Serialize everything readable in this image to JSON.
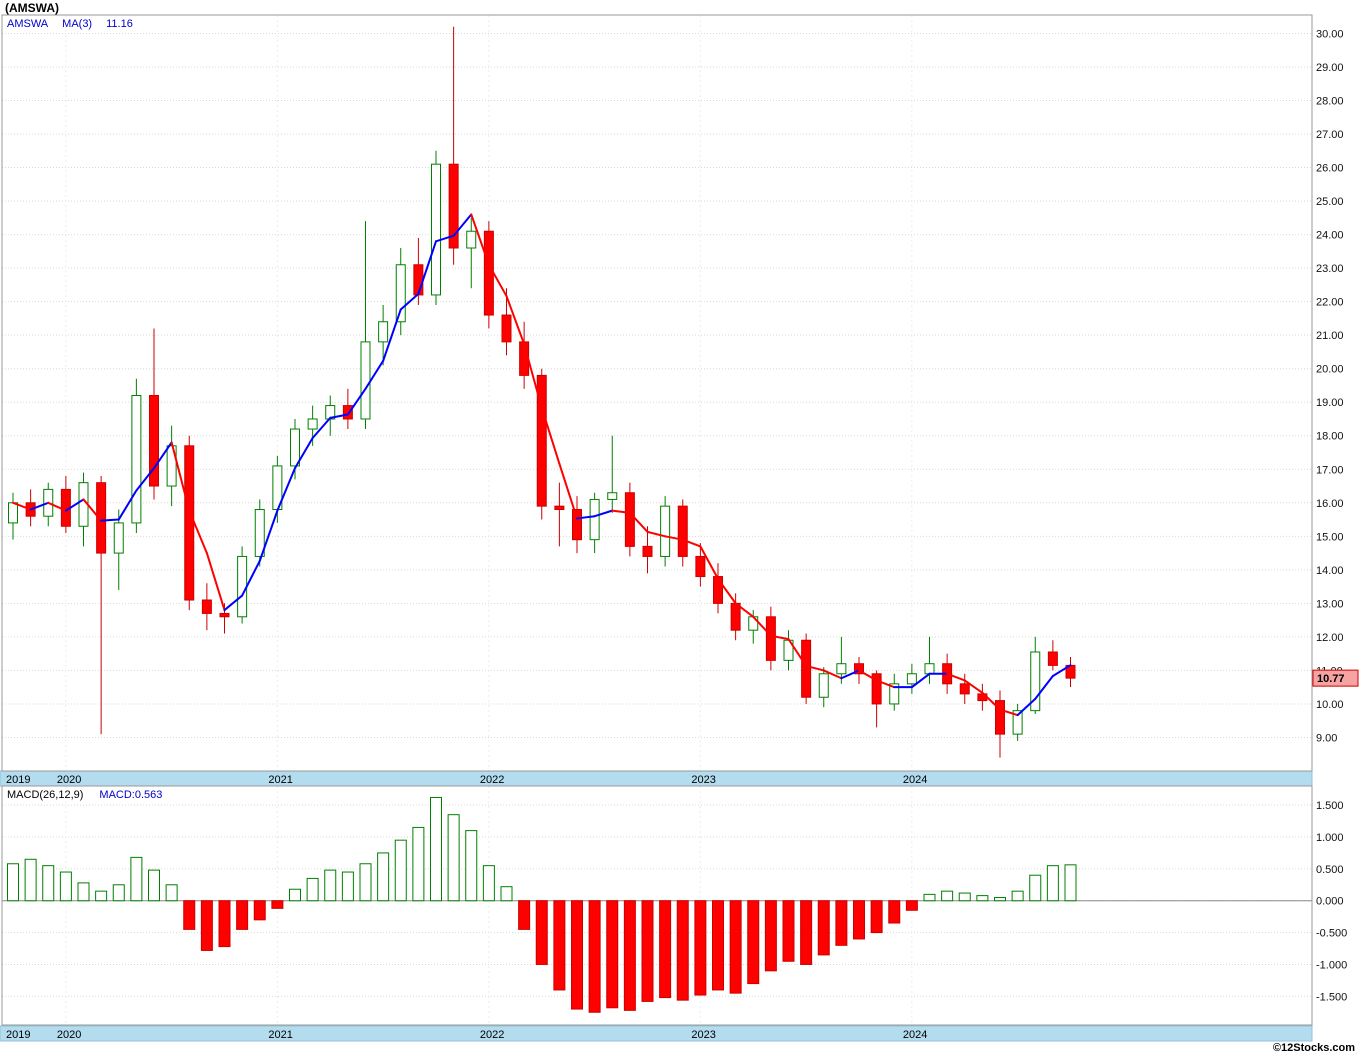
{
  "title": "(AMSWA)",
  "watermark": "©12Stocks.com",
  "price_panel": {
    "legend": {
      "symbol": "AMSWA",
      "ma_label": "MA(3)",
      "ma_value": "11.16"
    },
    "y_axis_labels": [
      "30.00",
      "29.00",
      "28.00",
      "27.00",
      "26.00",
      "25.00",
      "24.00",
      "23.00",
      "22.00",
      "21.00",
      "20.00",
      "19.00",
      "18.00",
      "17.00",
      "16.00",
      "15.00",
      "14.00",
      "13.00",
      "12.00",
      "11.00",
      "10.00",
      "9.00"
    ],
    "last_price_label": "10.77",
    "x_axis_years": [
      "2019",
      "2020",
      "2021",
      "2022",
      "2023",
      "2024"
    ]
  },
  "macd_panel": {
    "legend": {
      "label": "MACD(26,12,9)",
      "value_label": "MACD:0.563"
    },
    "y_axis_labels": [
      "1.500",
      "1.000",
      "0.500",
      "0.000",
      "-0.500",
      "-1.000",
      "-1.500"
    ],
    "x_axis_years": [
      "2019",
      "2020",
      "2021",
      "2022",
      "2023",
      "2024"
    ]
  },
  "colors": {
    "up": "#008000",
    "up_fill": "#ffffff",
    "down": "#ff0000",
    "down_border": "#cc0000",
    "ma_up": "#0000ff",
    "ma_down": "#ff0000",
    "band": "#b3dcee",
    "band_border": "#93c2d8",
    "legend_blue": "#0000cc",
    "grid": "#d9d9d9",
    "axis_text": "#111111",
    "border": "#999999",
    "last_price_bg": "#f7a3a3"
  },
  "chart_data": [
    {
      "type": "candlestick",
      "symbol": "AMSWA",
      "interval": "monthly",
      "ylim": [
        9,
        30
      ],
      "axis_side": "right",
      "grid": true,
      "x": [
        "2019-10",
        "2019-11",
        "2019-12",
        "2020-01",
        "2020-02",
        "2020-03",
        "2020-04",
        "2020-05",
        "2020-06",
        "2020-07",
        "2020-08",
        "2020-09",
        "2020-10",
        "2020-11",
        "2020-12",
        "2021-01",
        "2021-02",
        "2021-03",
        "2021-04",
        "2021-05",
        "2021-06",
        "2021-07",
        "2021-08",
        "2021-09",
        "2021-10",
        "2021-11",
        "2021-12",
        "2022-01",
        "2022-02",
        "2022-03",
        "2022-04",
        "2022-05",
        "2022-06",
        "2022-07",
        "2022-08",
        "2022-09",
        "2022-10",
        "2022-11",
        "2022-12",
        "2023-01",
        "2023-02",
        "2023-03",
        "2023-04",
        "2023-05",
        "2023-06",
        "2023-07",
        "2023-08",
        "2023-09",
        "2023-10",
        "2023-11",
        "2023-12",
        "2024-01",
        "2024-02",
        "2024-03",
        "2024-04",
        "2024-05",
        "2024-06",
        "2024-07",
        "2024-08",
        "2024-09",
        "2024-10"
      ],
      "open": [
        15.4,
        16.0,
        15.6,
        16.4,
        15.3,
        16.6,
        14.5,
        15.4,
        19.2,
        16.5,
        17.7,
        13.1,
        12.7,
        12.6,
        14.4,
        15.8,
        17.1,
        18.2,
        18.5,
        18.9,
        18.5,
        20.8,
        21.4,
        23.1,
        22.2,
        26.1,
        23.6,
        24.1,
        21.6,
        20.8,
        19.8,
        15.9,
        15.8,
        14.9,
        16.1,
        16.3,
        14.7,
        14.4,
        15.9,
        14.4,
        13.8,
        13.0,
        12.2,
        12.6,
        11.3,
        11.9,
        10.2,
        10.9,
        11.2,
        10.9,
        10.0,
        10.6,
        10.9,
        11.2,
        10.6,
        10.3,
        10.1,
        9.1,
        9.8,
        11.55,
        11.15
      ],
      "high": [
        16.3,
        16.4,
        16.6,
        16.8,
        16.9,
        16.8,
        15.8,
        19.7,
        21.2,
        18.3,
        18.0,
        13.6,
        13.0,
        14.7,
        16.1,
        17.4,
        18.5,
        18.9,
        19.2,
        19.4,
        24.4,
        21.9,
        23.6,
        23.9,
        26.5,
        30.2,
        24.5,
        24.4,
        22.4,
        21.4,
        20.0,
        16.6,
        16.2,
        16.3,
        18.0,
        16.6,
        15.3,
        16.2,
        16.1,
        14.8,
        14.2,
        13.3,
        12.8,
        12.9,
        12.2,
        12.1,
        11.1,
        12.0,
        11.4,
        11.0,
        10.9,
        11.2,
        12.0,
        11.5,
        10.9,
        10.6,
        10.4,
        10.0,
        12.0,
        11.9,
        11.4
      ],
      "low": [
        14.9,
        15.3,
        15.3,
        15.1,
        14.7,
        9.1,
        13.4,
        15.1,
        16.1,
        15.9,
        12.8,
        12.2,
        12.1,
        12.4,
        14.1,
        15.4,
        16.7,
        17.7,
        18.0,
        18.2,
        18.2,
        20.1,
        21.0,
        21.9,
        21.9,
        23.1,
        22.4,
        21.2,
        20.4,
        19.4,
        15.5,
        14.7,
        14.5,
        14.5,
        15.7,
        14.4,
        13.9,
        14.1,
        14.1,
        13.5,
        12.7,
        11.9,
        11.8,
        11.0,
        11.0,
        10.0,
        9.9,
        10.6,
        10.6,
        9.3,
        9.8,
        10.3,
        10.6,
        10.3,
        10.0,
        9.8,
        8.4,
        8.9,
        9.7,
        11.0,
        10.5
      ],
      "close": [
        16.0,
        15.6,
        16.4,
        15.3,
        16.6,
        14.5,
        15.4,
        19.2,
        16.5,
        17.7,
        13.1,
        12.7,
        12.6,
        14.4,
        15.8,
        17.1,
        18.2,
        18.5,
        18.9,
        18.5,
        20.8,
        21.4,
        23.1,
        22.2,
        26.1,
        23.6,
        24.1,
        21.6,
        20.8,
        19.8,
        15.9,
        15.8,
        14.9,
        16.1,
        16.3,
        14.7,
        14.4,
        15.9,
        14.4,
        13.8,
        13.0,
        12.2,
        12.6,
        11.3,
        11.9,
        10.2,
        10.9,
        11.2,
        10.9,
        10.0,
        10.6,
        10.9,
        11.2,
        10.6,
        10.3,
        10.1,
        9.1,
        9.8,
        11.55,
        11.15,
        10.77
      ],
      "last_close": 10.77,
      "overlays": [
        {
          "name": "MA(3)",
          "type": "sma",
          "period": 3,
          "last_value": 11.16,
          "color_rising": "#0000ff",
          "color_falling": "#ff0000"
        }
      ]
    },
    {
      "type": "bar",
      "name": "MACD(26,12,9) histogram",
      "aligned_with": "candlestick months above",
      "ylim": [
        -1.75,
        1.62
      ],
      "zero_line": true,
      "last_value": 0.563,
      "values": [
        0.58,
        0.65,
        0.55,
        0.45,
        0.28,
        0.15,
        0.25,
        0.68,
        0.48,
        0.25,
        -0.45,
        -0.78,
        -0.72,
        -0.45,
        -0.3,
        -0.12,
        0.18,
        0.35,
        0.48,
        0.45,
        0.58,
        0.75,
        0.95,
        1.15,
        1.62,
        1.35,
        1.1,
        0.55,
        0.22,
        -0.45,
        -1.0,
        -1.4,
        -1.7,
        -1.75,
        -1.68,
        -1.72,
        -1.58,
        -1.52,
        -1.56,
        -1.48,
        -1.4,
        -1.45,
        -1.3,
        -1.1,
        -0.95,
        -1.0,
        -0.85,
        -0.7,
        -0.6,
        -0.5,
        -0.35,
        -0.15,
        0.1,
        0.15,
        0.12,
        0.08,
        0.05,
        0.15,
        0.4,
        0.55,
        0.563
      ]
    }
  ]
}
